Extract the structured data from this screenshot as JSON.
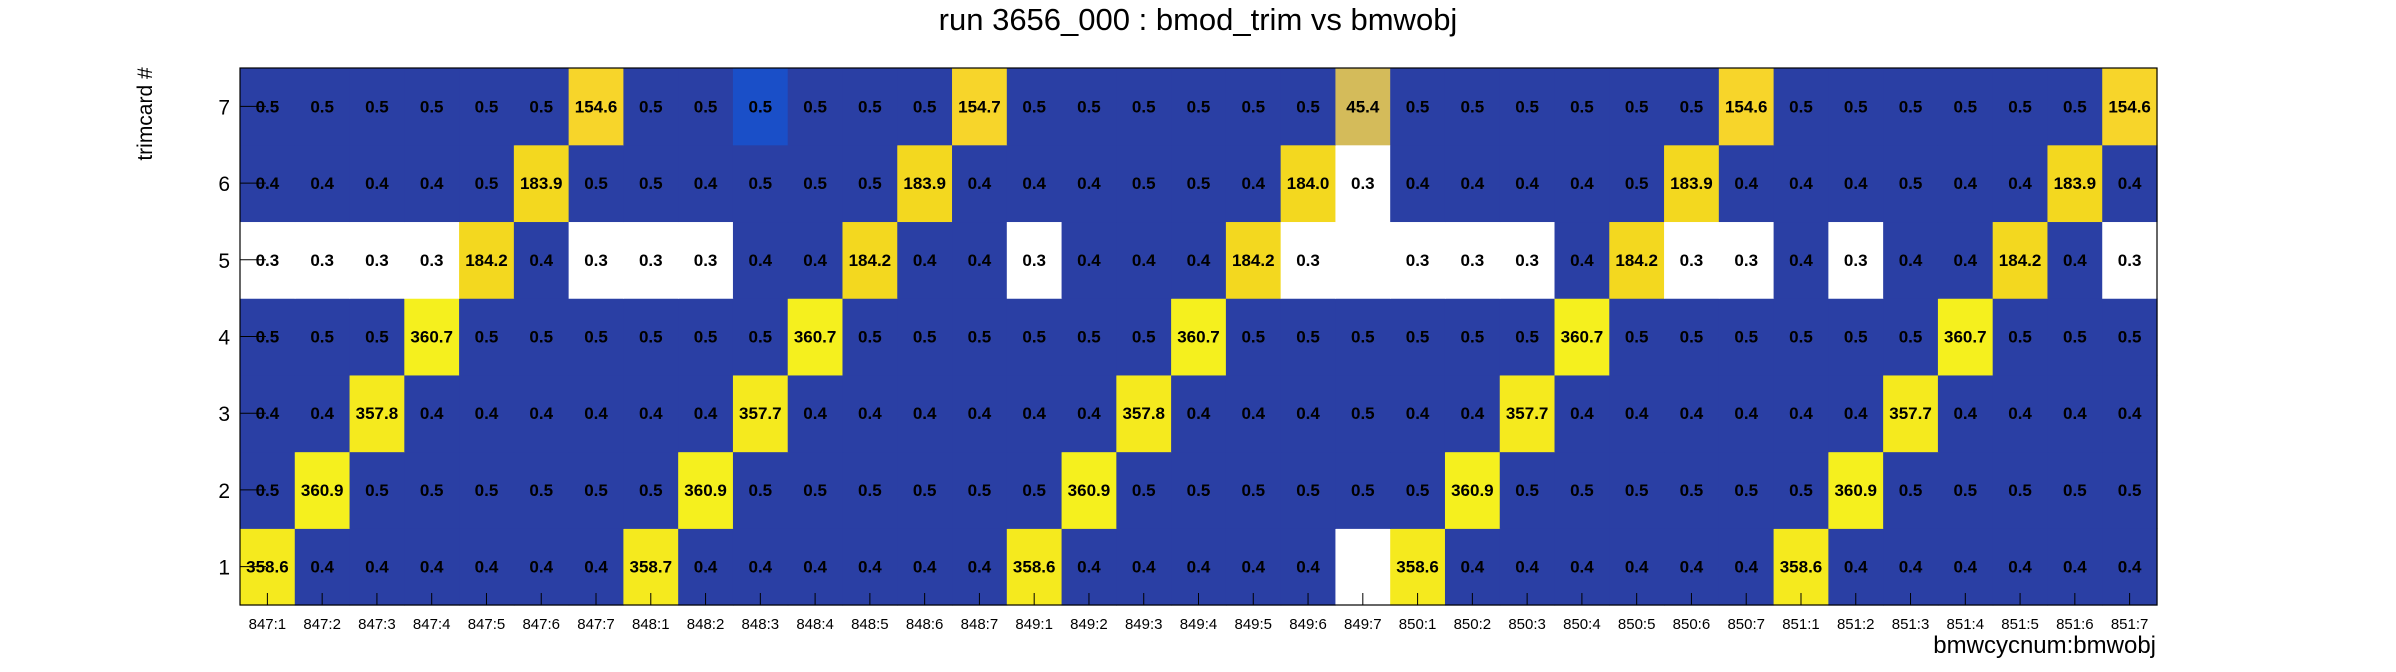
{
  "chart_data": {
    "type": "heatmap",
    "title": "run 3656_000 : bmod_trim vs bmwobj",
    "xlabel": "bmwcycnum:bmwobj",
    "ylabel": "trimcard #",
    "x_categories": [
      "847:1",
      "847:2",
      "847:3",
      "847:4",
      "847:5",
      "847:6",
      "847:7",
      "848:1",
      "848:2",
      "848:3",
      "848:4",
      "848:5",
      "848:6",
      "848:7",
      "849:1",
      "849:2",
      "849:3",
      "849:4",
      "849:5",
      "849:6",
      "849:7",
      "850:1",
      "850:2",
      "850:3",
      "850:4",
      "850:5",
      "850:6",
      "850:7",
      "851:1",
      "851:2",
      "851:3",
      "851:4",
      "851:5",
      "851:6",
      "851:7"
    ],
    "y_categories": [
      "1",
      "2",
      "3",
      "4",
      "5",
      "6",
      "7"
    ],
    "values": [
      [
        358.6,
        0.4,
        0.4,
        0.4,
        0.4,
        0.4,
        0.4,
        358.7,
        0.4,
        0.4,
        0.4,
        0.4,
        0.4,
        0.4,
        358.6,
        0.4,
        0.4,
        0.4,
        0.4,
        0.4,
        null,
        358.6,
        0.4,
        0.4,
        0.4,
        0.4,
        0.4,
        0.4,
        358.6,
        0.4,
        0.4,
        0.4,
        0.4,
        0.4,
        0.4
      ],
      [
        0.5,
        360.9,
        0.5,
        0.5,
        0.5,
        0.5,
        0.5,
        0.5,
        360.9,
        0.5,
        0.5,
        0.5,
        0.5,
        0.5,
        0.5,
        360.9,
        0.5,
        0.5,
        0.5,
        0.5,
        0.5,
        0.5,
        360.9,
        0.5,
        0.5,
        0.5,
        0.5,
        0.5,
        0.5,
        360.9,
        0.5,
        0.5,
        0.5,
        0.5,
        0.5
      ],
      [
        0.4,
        0.4,
        357.8,
        0.4,
        0.4,
        0.4,
        0.4,
        0.4,
        0.4,
        357.7,
        0.4,
        0.4,
        0.4,
        0.4,
        0.4,
        0.4,
        357.8,
        0.4,
        0.4,
        0.4,
        0.5,
        0.4,
        0.4,
        357.7,
        0.4,
        0.4,
        0.4,
        0.4,
        0.4,
        0.4,
        357.7,
        0.4,
        0.4,
        0.4,
        0.4
      ],
      [
        0.5,
        0.5,
        0.5,
        360.7,
        0.5,
        0.5,
        0.5,
        0.5,
        0.5,
        0.5,
        360.7,
        0.5,
        0.5,
        0.5,
        0.5,
        0.5,
        0.5,
        360.7,
        0.5,
        0.5,
        0.5,
        0.5,
        0.5,
        0.5,
        360.7,
        0.5,
        0.5,
        0.5,
        0.5,
        0.5,
        0.5,
        360.7,
        0.5,
        0.5,
        0.5
      ],
      [
        0.3,
        0.3,
        0.3,
        0.3,
        184.2,
        0.4,
        0.3,
        0.3,
        0.3,
        0.4,
        0.4,
        184.2,
        0.4,
        0.4,
        0.3,
        0.4,
        0.4,
        0.4,
        184.2,
        0.3,
        null,
        0.3,
        0.3,
        0.3,
        0.4,
        184.2,
        0.3,
        0.3,
        0.4,
        0.3,
        0.4,
        0.4,
        184.2,
        0.4,
        0.3
      ],
      [
        0.4,
        0.4,
        0.4,
        0.4,
        0.5,
        183.9,
        0.5,
        0.5,
        0.4,
        0.5,
        0.5,
        0.5,
        183.9,
        0.4,
        0.4,
        0.4,
        0.5,
        0.5,
        0.4,
        184.0,
        0.3,
        0.4,
        0.4,
        0.4,
        0.4,
        0.5,
        183.9,
        0.4,
        0.4,
        0.4,
        0.5,
        0.4,
        0.4,
        183.9,
        0.4
      ],
      [
        0.5,
        0.5,
        0.5,
        0.5,
        0.5,
        0.5,
        154.6,
        0.5,
        0.5,
        0.5,
        0.5,
        0.5,
        0.5,
        154.7,
        0.5,
        0.5,
        0.5,
        0.5,
        0.5,
        0.5,
        45.4,
        0.5,
        0.5,
        0.5,
        0.5,
        0.5,
        0.5,
        154.6,
        0.5,
        0.5,
        0.5,
        0.5,
        0.5,
        0.5,
        154.6
      ]
    ],
    "cell_colors": [
      [
        "#f5ea1e",
        "#2a3fa4",
        "#2a3fa4",
        "#2a3fa4",
        "#2a3fa4",
        "#2a3fa4",
        "#2a3fa4",
        "#f5ea1e",
        "#2a3fa4",
        "#2a3fa4",
        "#2a3fa4",
        "#2a3fa4",
        "#2a3fa4",
        "#2a3fa4",
        "#f5ea1e",
        "#2a3fa4",
        "#2a3fa4",
        "#2a3fa4",
        "#2a3fa4",
        "#2a3fa4",
        "#ffffff",
        "#f5ea1e",
        "#2a3fa4",
        "#2a3fa4",
        "#2a3fa4",
        "#2a3fa4",
        "#2a3fa4",
        "#2a3fa4",
        "#f5ea1e",
        "#2a3fa4",
        "#2a3fa4",
        "#2a3fa4",
        "#2a3fa4",
        "#2a3fa4",
        "#2a3fa4"
      ],
      [
        "#2a3fa4",
        "#f5f01e",
        "#2a3fa4",
        "#2a3fa4",
        "#2a3fa4",
        "#2a3fa4",
        "#2a3fa4",
        "#2a3fa4",
        "#f5f01e",
        "#2a3fa4",
        "#2a3fa4",
        "#2a3fa4",
        "#2a3fa4",
        "#2a3fa4",
        "#2a3fa4",
        "#f5f01e",
        "#2a3fa4",
        "#2a3fa4",
        "#2a3fa4",
        "#2a3fa4",
        "#2a3fa4",
        "#2a3fa4",
        "#f5f01e",
        "#2a3fa4",
        "#2a3fa4",
        "#2a3fa4",
        "#2a3fa4",
        "#2a3fa4",
        "#2a3fa4",
        "#f5f01e",
        "#2a3fa4",
        "#2a3fa4",
        "#2a3fa4",
        "#2a3fa4",
        "#2a3fa4"
      ],
      [
        "#2a3fa4",
        "#2a3fa4",
        "#f5ea1e",
        "#2a3fa4",
        "#2a3fa4",
        "#2a3fa4",
        "#2a3fa4",
        "#2a3fa4",
        "#2a3fa4",
        "#f5ea1e",
        "#2a3fa4",
        "#2a3fa4",
        "#2a3fa4",
        "#2a3fa4",
        "#2a3fa4",
        "#2a3fa4",
        "#f5ea1e",
        "#2a3fa4",
        "#2a3fa4",
        "#2a3fa4",
        "#2a3fa4",
        "#2a3fa4",
        "#2a3fa4",
        "#f5ea1e",
        "#2a3fa4",
        "#2a3fa4",
        "#2a3fa4",
        "#2a3fa4",
        "#2a3fa4",
        "#2a3fa4",
        "#f5ea1e",
        "#2a3fa4",
        "#2a3fa4",
        "#2a3fa4",
        "#2a3fa4"
      ],
      [
        "#2a3fa4",
        "#2a3fa4",
        "#2a3fa4",
        "#f5f01e",
        "#2a3fa4",
        "#2a3fa4",
        "#2a3fa4",
        "#2a3fa4",
        "#2a3fa4",
        "#2a3fa4",
        "#f5f01e",
        "#2a3fa4",
        "#2a3fa4",
        "#2a3fa4",
        "#2a3fa4",
        "#2a3fa4",
        "#2a3fa4",
        "#f5f01e",
        "#2a3fa4",
        "#2a3fa4",
        "#2a3fa4",
        "#2a3fa4",
        "#2a3fa4",
        "#2a3fa4",
        "#f5f01e",
        "#2a3fa4",
        "#2a3fa4",
        "#2a3fa4",
        "#2a3fa4",
        "#2a3fa4",
        "#2a3fa4",
        "#f5f01e",
        "#2a3fa4",
        "#2a3fa4",
        "#2a3fa4"
      ],
      [
        "#ffffff",
        "#ffffff",
        "#ffffff",
        "#ffffff",
        "#f3d81f",
        "#2a3fa4",
        "#ffffff",
        "#ffffff",
        "#ffffff",
        "#2a3fa4",
        "#2a3fa4",
        "#f3d81f",
        "#2a3fa4",
        "#2a3fa4",
        "#ffffff",
        "#2a3fa4",
        "#2a3fa4",
        "#2a3fa4",
        "#f3d81f",
        "#ffffff",
        "#ffffff",
        "#ffffff",
        "#ffffff",
        "#ffffff",
        "#2a3fa4",
        "#f3d81f",
        "#ffffff",
        "#ffffff",
        "#2a3fa4",
        "#ffffff",
        "#2a3fa4",
        "#2a3fa4",
        "#f3d81f",
        "#2a3fa4",
        "#ffffff"
      ],
      [
        "#2a3fa4",
        "#2a3fa4",
        "#2a3fa4",
        "#2a3fa4",
        "#2a3fa4",
        "#f3d81f",
        "#2a3fa4",
        "#2a3fa4",
        "#2a3fa4",
        "#2a3fa4",
        "#2a3fa4",
        "#2a3fa4",
        "#f3d81f",
        "#2a3fa4",
        "#2a3fa4",
        "#2a3fa4",
        "#2a3fa4",
        "#2a3fa4",
        "#2a3fa4",
        "#f3d81f",
        "#ffffff",
        "#2a3fa4",
        "#2a3fa4",
        "#2a3fa4",
        "#2a3fa4",
        "#2a3fa4",
        "#f3d81f",
        "#2a3fa4",
        "#2a3fa4",
        "#2a3fa4",
        "#2a3fa4",
        "#2a3fa4",
        "#2a3fa4",
        "#f3d81f",
        "#2a3fa4"
      ],
      [
        "#2a3fa4",
        "#2a3fa4",
        "#2a3fa4",
        "#2a3fa4",
        "#2a3fa4",
        "#2a3fa4",
        "#f7d52a",
        "#2a3fa4",
        "#2a3fa4",
        "#1a4fc8",
        "#2a3fa4",
        "#2a3fa4",
        "#2a3fa4",
        "#f7d52a",
        "#2a3fa4",
        "#2a3fa4",
        "#2a3fa4",
        "#2a3fa4",
        "#2a3fa4",
        "#2a3fa4",
        "#d4bb5a",
        "#2a3fa4",
        "#2a3fa4",
        "#2a3fa4",
        "#2a3fa4",
        "#2a3fa4",
        "#2a3fa4",
        "#f7d52a",
        "#2a3fa4",
        "#2a3fa4",
        "#2a3fa4",
        "#2a3fa4",
        "#2a3fa4",
        "#2a3fa4",
        "#f7d52a"
      ]
    ],
    "grid": false,
    "legend": "none"
  }
}
